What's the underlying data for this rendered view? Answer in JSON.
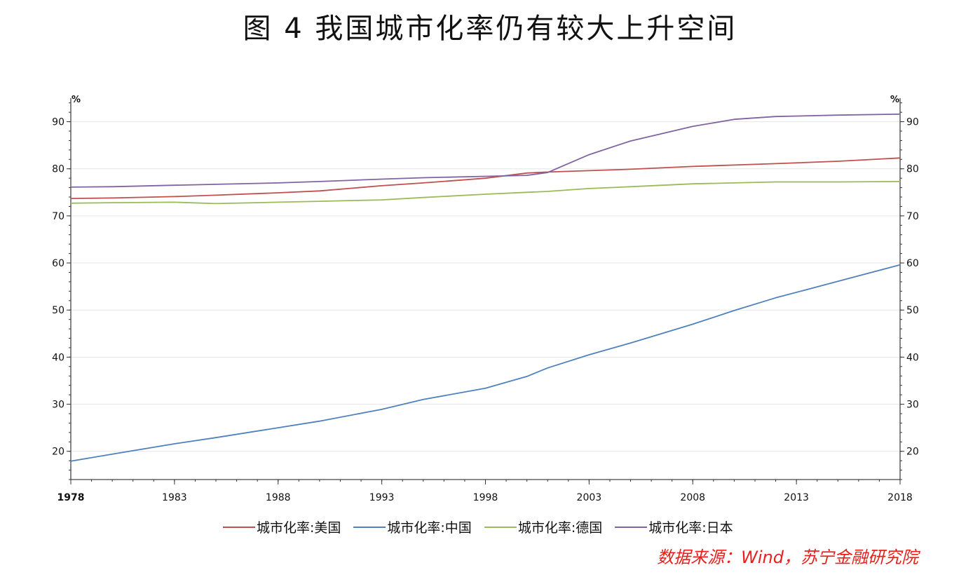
{
  "title": "图 4 我国城市化率仍有较大上升空间",
  "source": "数据来源：Wind，苏宁金融研究院",
  "chart_data": {
    "type": "line",
    "title": "图 4 我国城市化率仍有较大上升空间",
    "ylabel_left": "%",
    "ylabel_right": "%",
    "xlim": [
      1978,
      2018
    ],
    "ylim": [
      14,
      95
    ],
    "x_ticks": [
      "1978",
      "1983",
      "1988",
      "1993",
      "1998",
      "2003",
      "2008",
      "2013",
      "2018"
    ],
    "y_ticks": [
      "20",
      "30",
      "40",
      "50",
      "60",
      "70",
      "80",
      "90"
    ],
    "grid": true,
    "legend_position": "bottom",
    "x": [
      1978,
      1980,
      1983,
      1985,
      1988,
      1990,
      1993,
      1995,
      1998,
      2000,
      2001,
      2003,
      2005,
      2008,
      2010,
      2012,
      2015,
      2018
    ],
    "series": [
      {
        "name": "城市化率:美国",
        "color": "#c0504d",
        "values": [
          73.7,
          73.8,
          74.1,
          74.4,
          74.9,
          75.3,
          76.4,
          77.0,
          78.0,
          79.1,
          79.3,
          79.6,
          79.9,
          80.5,
          80.8,
          81.1,
          81.6,
          82.3
        ]
      },
      {
        "name": "城市化率:中国",
        "color": "#4f81bd",
        "values": [
          17.9,
          19.4,
          21.6,
          22.9,
          25.0,
          26.4,
          28.9,
          31.0,
          33.4,
          35.9,
          37.7,
          40.5,
          43.0,
          47.0,
          49.9,
          52.6,
          56.1,
          59.6
        ]
      },
      {
        "name": "城市化率:德国",
        "color": "#9bbb59",
        "values": [
          72.7,
          72.8,
          72.9,
          72.6,
          72.9,
          73.1,
          73.4,
          73.9,
          74.6,
          75.0,
          75.2,
          75.8,
          76.2,
          76.8,
          77.0,
          77.2,
          77.2,
          77.3
        ]
      },
      {
        "name": "城市化率:日本",
        "color": "#8064a2",
        "values": [
          76.1,
          76.2,
          76.5,
          76.7,
          77.0,
          77.3,
          77.8,
          78.1,
          78.4,
          78.6,
          79.2,
          83.0,
          85.9,
          89.0,
          90.5,
          91.1,
          91.4,
          91.6
        ]
      }
    ]
  }
}
